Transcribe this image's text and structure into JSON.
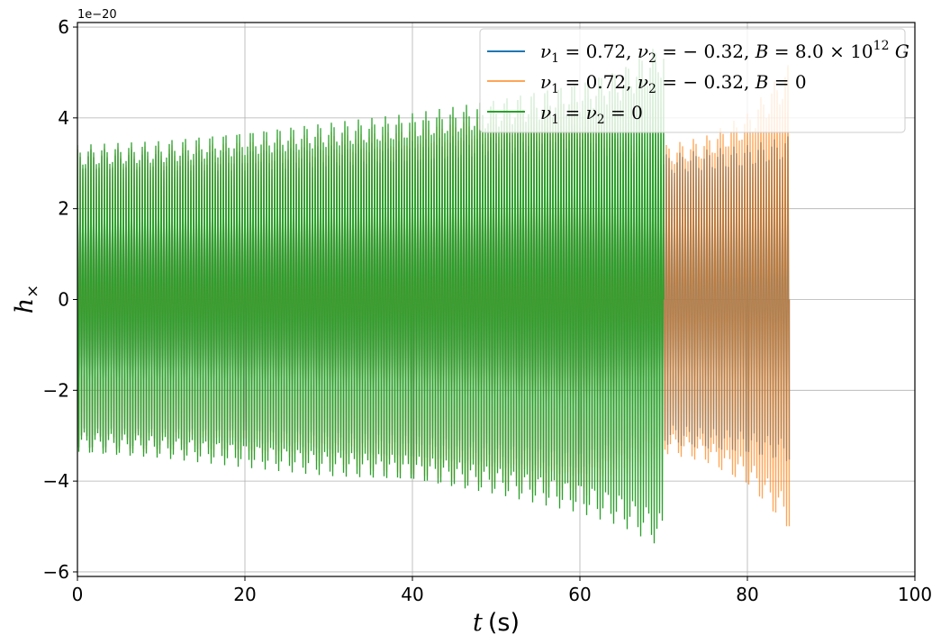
{
  "chart_data": {
    "type": "line",
    "title": "",
    "xlabel": "t (s)",
    "xlabel_var": "t",
    "xlabel_unit": "(s)",
    "ylabel": "h×",
    "y_offset_label": "1e−20",
    "y_scale_factor": 1e-20,
    "xlim": [
      0,
      100
    ],
    "ylim": [
      -6.1,
      6.1
    ],
    "x_ticks": [
      0,
      20,
      40,
      60,
      80,
      100
    ],
    "y_ticks": [
      -6,
      -4,
      -2,
      0,
      2,
      4,
      6
    ],
    "x_tick_labels": [
      "0",
      "20",
      "40",
      "60",
      "80",
      "100"
    ],
    "y_tick_labels": [
      "−6",
      "−4",
      "−2",
      "0",
      "2",
      "4",
      "6"
    ],
    "grid": true,
    "legend_position": "top-right",
    "series": [
      {
        "name": "ν1 = 0.72, ν2 = −0.32, B = 8.0 × 10^12 G",
        "color": "#1f77b4",
        "t_end": 85,
        "envelope": [
          {
            "t": 0,
            "upper": 3.3,
            "lower": -3.3
          },
          {
            "t": 20,
            "upper": 3.3,
            "lower": -3.3
          },
          {
            "t": 40,
            "upper": 3.5,
            "lower": -3.5
          },
          {
            "t": 60,
            "upper": 3.9,
            "lower": -3.9
          },
          {
            "t": 70,
            "upper": 3.2,
            "lower": -3.2
          },
          {
            "t": 80,
            "upper": 3.4,
            "lower": -3.4
          },
          {
            "t": 85,
            "upper": 3.6,
            "lower": -3.6
          }
        ]
      },
      {
        "name": "ν1 = 0.72, ν2 = −0.32, B = 0",
        "color": "#ff7f0e",
        "t_end": 85,
        "envelope": [
          {
            "t": 0,
            "upper": 3.3,
            "lower": -3.3
          },
          {
            "t": 20,
            "upper": 3.5,
            "lower": -3.5
          },
          {
            "t": 40,
            "upper": 3.9,
            "lower": -3.9
          },
          {
            "t": 60,
            "upper": 4.4,
            "lower": -4.4
          },
          {
            "t": 70,
            "upper": 3.4,
            "lower": -3.4
          },
          {
            "t": 75,
            "upper": 3.6,
            "lower": -3.6
          },
          {
            "t": 80,
            "upper": 4.1,
            "lower": -4.1
          },
          {
            "t": 85,
            "upper": 5.2,
            "lower": -5.1
          }
        ]
      },
      {
        "name": "ν1 = ν2 = 0",
        "color": "#2ca02c",
        "t_end": 70,
        "envelope": [
          {
            "t": 0,
            "upper": 3.4,
            "lower": -3.4
          },
          {
            "t": 10,
            "upper": 3.5,
            "lower": -3.5
          },
          {
            "t": 20,
            "upper": 3.7,
            "lower": -3.7
          },
          {
            "t": 30,
            "upper": 3.9,
            "lower": -3.9
          },
          {
            "t": 40,
            "upper": 4.1,
            "lower": -4.0
          },
          {
            "t": 50,
            "upper": 4.4,
            "lower": -4.3
          },
          {
            "t": 60,
            "upper": 4.8,
            "lower": -4.7
          },
          {
            "t": 65,
            "upper": 5.1,
            "lower": -5.0
          },
          {
            "t": 70,
            "upper": 5.7,
            "lower": -5.5
          }
        ]
      }
    ]
  },
  "legend": {
    "entries": [
      {
        "key": "s1",
        "color": "#1f77b4"
      },
      {
        "key": "s2",
        "color": "#ff7f0e"
      },
      {
        "key": "s3",
        "color": "#2ca02c"
      }
    ]
  }
}
